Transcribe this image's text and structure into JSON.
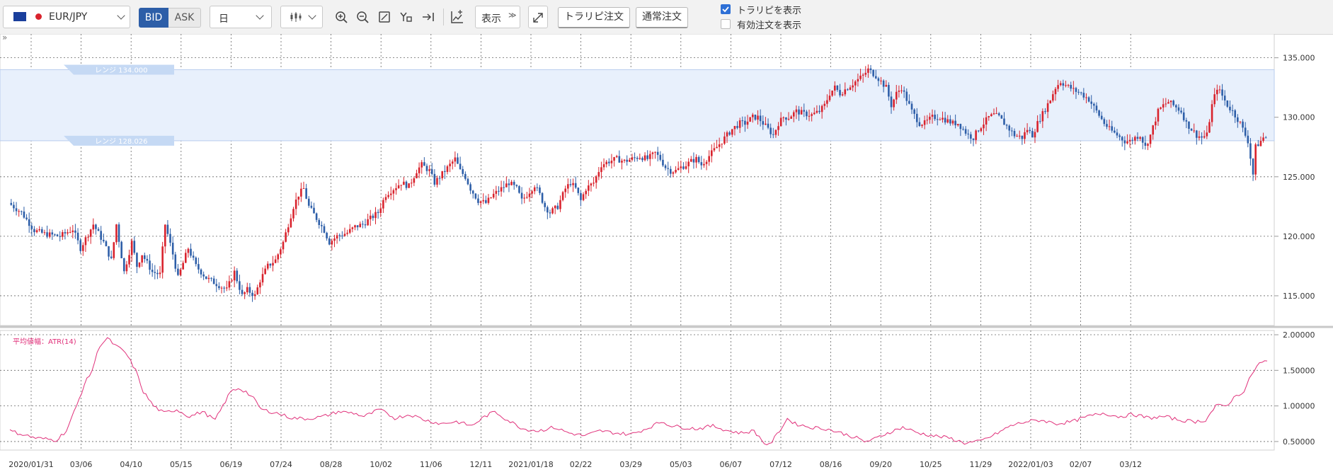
{
  "toolbar": {
    "symbol": "EUR/JPY",
    "bid_label": "BID",
    "ask_label": "ASK",
    "timeframe": "日",
    "display_label": "表示",
    "traripi_order_label": "トラリピ注文",
    "normal_order_label": "通常注文",
    "show_traripi_label": "トラリピを表示",
    "show_traripi_checked": true,
    "show_active_orders_label": "有効注文を表示",
    "show_active_orders_checked": false
  },
  "colors": {
    "up_candle": "#d9232d",
    "down_candle": "#2d5ea8",
    "range_band": "#e8f0fc",
    "range_tag": "#c5d9f4",
    "atr_line": "#e0307a",
    "bid_active": "#2d5ea8"
  },
  "chart_data": [
    {
      "type": "candlestick",
      "title": "",
      "x_tick_labels": [
        "2020/01/31",
        "03/06",
        "04/10",
        "05/15",
        "06/19",
        "07/24",
        "08/28",
        "10/02",
        "11/06",
        "12/11",
        "2021/01/18",
        "02/22",
        "03/29",
        "05/03",
        "06/07",
        "07/12",
        "08/16",
        "09/20",
        "10/25",
        "11/29",
        "2022/01/03",
        "02/07",
        "03/12"
      ],
      "y_ticks": [
        "135.000",
        "130.000",
        "125.000",
        "120.000",
        "115.000"
      ],
      "ylim": [
        112.5,
        137.0
      ],
      "range_band": {
        "upper": 134.0,
        "lower": 128.026,
        "upper_label": "レンジ 134.000",
        "lower_label": "レンジ 128.026"
      },
      "close_path": [
        [
          0,
          122.8
        ],
        [
          5,
          122.0
        ],
        [
          10,
          120.5
        ],
        [
          14,
          120.2
        ],
        [
          20,
          120.0
        ],
        [
          25,
          120.6
        ],
        [
          28,
          119.0
        ],
        [
          33,
          121.0
        ],
        [
          37,
          119.5
        ],
        [
          40,
          118.0
        ],
        [
          42,
          121.0
        ],
        [
          45,
          117.0
        ],
        [
          48,
          119.5
        ],
        [
          50,
          117.5
        ],
        [
          52,
          118.5
        ],
        [
          56,
          117.0
        ],
        [
          59,
          116.8
        ],
        [
          61,
          121.0
        ],
        [
          64,
          118.5
        ],
        [
          66,
          116.5
        ],
        [
          70,
          119.0
        ],
        [
          73,
          117.5
        ],
        [
          77,
          116.5
        ],
        [
          81,
          116.0
        ],
        [
          85,
          115.5
        ],
        [
          88,
          117.0
        ],
        [
          91,
          115.0
        ],
        [
          93,
          115.5
        ],
        [
          96,
          115.0
        ],
        [
          98,
          116.3
        ],
        [
          101,
          117.5
        ],
        [
          104,
          118.0
        ],
        [
          107,
          119.5
        ],
        [
          109,
          121.0
        ],
        [
          111,
          122.5
        ],
        [
          113,
          123.5
        ],
        [
          115,
          124.0
        ],
        [
          117,
          122.5
        ],
        [
          120,
          121.5
        ],
        [
          123,
          120.5
        ],
        [
          125,
          119.5
        ],
        [
          128,
          120.0
        ],
        [
          132,
          120.3
        ],
        [
          135,
          120.8
        ],
        [
          138,
          121.0
        ],
        [
          141,
          121.5
        ],
        [
          144,
          122.0
        ],
        [
          147,
          123.5
        ],
        [
          150,
          124.0
        ],
        [
          153,
          124.5
        ],
        [
          156,
          124.2
        ],
        [
          159,
          125.5
        ],
        [
          161,
          126.0
        ],
        [
          164,
          125.5
        ],
        [
          166,
          124.5
        ],
        [
          168,
          125.0
        ],
        [
          170,
          125.5
        ],
        [
          172,
          126.0
        ],
        [
          174,
          126.5
        ],
        [
          176,
          125.5
        ],
        [
          178,
          125.0
        ],
        [
          180,
          124.0
        ],
        [
          183,
          123.0
        ],
        [
          186,
          122.8
        ],
        [
          189,
          123.5
        ],
        [
          192,
          124.0
        ],
        [
          195,
          124.5
        ],
        [
          198,
          124.0
        ],
        [
          200,
          123.0
        ],
        [
          202,
          123.5
        ],
        [
          205,
          124.3
        ],
        [
          207,
          123.5
        ],
        [
          209,
          122.5
        ],
        [
          211,
          122.0
        ],
        [
          214,
          122.5
        ],
        [
          217,
          124.0
        ],
        [
          219,
          124.5
        ],
        [
          221,
          124.0
        ],
        [
          223,
          123.0
        ],
        [
          225,
          124.0
        ],
        [
          228,
          124.5
        ],
        [
          231,
          126.0
        ],
        [
          234,
          126.3
        ],
        [
          237,
          126.5
        ],
        [
          240,
          126.3
        ],
        [
          243,
          126.5
        ],
        [
          246,
          126.7
        ],
        [
          249,
          126.5
        ],
        [
          252,
          127.0
        ],
        [
          254,
          126.5
        ],
        [
          256,
          125.8
        ],
        [
          258,
          125.5
        ],
        [
          260,
          125.5
        ],
        [
          262,
          125.8
        ],
        [
          264,
          126.0
        ],
        [
          266,
          126.3
        ],
        [
          268,
          126.5
        ],
        [
          270,
          126.0
        ],
        [
          272,
          126.5
        ],
        [
          274,
          127.0
        ],
        [
          276,
          127.5
        ],
        [
          278,
          128.0
        ],
        [
          280,
          128.5
        ],
        [
          282,
          129.0
        ],
        [
          285,
          129.5
        ],
        [
          287,
          129.5
        ],
        [
          290,
          130.0
        ],
        [
          292,
          130.0
        ],
        [
          294,
          129.5
        ],
        [
          296,
          129.0
        ],
        [
          298,
          128.5
        ],
        [
          300,
          129.5
        ],
        [
          302,
          130.0
        ],
        [
          304,
          130.0
        ],
        [
          307,
          130.5
        ],
        [
          310,
          130.3
        ],
        [
          313,
          130.2
        ],
        [
          316,
          130.5
        ],
        [
          318,
          131.0
        ],
        [
          320,
          132.0
        ],
        [
          322,
          132.5
        ],
        [
          324,
          132.0
        ],
        [
          327,
          132.5
        ],
        [
          330,
          133.0
        ],
        [
          333,
          133.5
        ],
        [
          335,
          134.0
        ],
        [
          338,
          133.5
        ],
        [
          340,
          133.0
        ],
        [
          342,
          132.5
        ],
        [
          344,
          131.0
        ],
        [
          346,
          132.0
        ],
        [
          348,
          132.5
        ],
        [
          350,
          131.5
        ],
        [
          352,
          130.5
        ],
        [
          355,
          129.5
        ],
        [
          357,
          129.5
        ],
        [
          360,
          130.0
        ],
        [
          363,
          130.0
        ],
        [
          365,
          129.8
        ],
        [
          368,
          129.5
        ],
        [
          370,
          129.5
        ],
        [
          372,
          129.0
        ],
        [
          374,
          128.5
        ],
        [
          376,
          128.3
        ],
        [
          378,
          129.0
        ],
        [
          380,
          129.5
        ],
        [
          382,
          130.0
        ],
        [
          384,
          130.2
        ],
        [
          386,
          130.0
        ],
        [
          388,
          129.5
        ],
        [
          390,
          129.0
        ],
        [
          392,
          128.5
        ],
        [
          395,
          128.3
        ],
        [
          397,
          129.0
        ],
        [
          399,
          128.5
        ],
        [
          401,
          129.5
        ],
        [
          403,
          130.3
        ],
        [
          406,
          131.5
        ],
        [
          408,
          132.5
        ],
        [
          410,
          133.0
        ],
        [
          412,
          132.7
        ],
        [
          415,
          132.3
        ],
        [
          418,
          132.0
        ],
        [
          421,
          131.5
        ],
        [
          424,
          130.5
        ],
        [
          427,
          129.5
        ],
        [
          429,
          129.0
        ],
        [
          432,
          128.5
        ],
        [
          435,
          128.0
        ],
        [
          437,
          128.0
        ],
        [
          439,
          128.3
        ],
        [
          441,
          128.5
        ],
        [
          443,
          127.5
        ],
        [
          445,
          128.5
        ],
        [
          448,
          130.5
        ],
        [
          450,
          131.0
        ],
        [
          452,
          131.3
        ],
        [
          454,
          131.0
        ],
        [
          457,
          130.5
        ],
        [
          459,
          129.5
        ],
        [
          461,
          129.0
        ],
        [
          463,
          128.5
        ],
        [
          465,
          128.3
        ],
        [
          467,
          128.5
        ],
        [
          469,
          131.0
        ],
        [
          471,
          132.5
        ],
        [
          473,
          131.8
        ],
        [
          475,
          131.0
        ],
        [
          477,
          130.5
        ],
        [
          480,
          129.5
        ],
        [
          483,
          128.0
        ],
        [
          485,
          125.2
        ],
        [
          486,
          127.5
        ],
        [
          488,
          128.0
        ],
        [
          489,
          128.3
        ]
      ],
      "x_index_max": 490
    },
    {
      "type": "line",
      "title": "平均値幅：ATR(14)",
      "y_ticks": [
        "2.00000",
        "1.50000",
        "1.00000",
        "0.50000"
      ],
      "ylim": [
        0.38,
        2.06
      ],
      "values_path": [
        [
          0,
          0.65
        ],
        [
          10,
          0.55
        ],
        [
          18,
          0.52
        ],
        [
          22,
          0.65
        ],
        [
          26,
          1.0
        ],
        [
          29,
          1.3
        ],
        [
          32,
          1.5
        ],
        [
          35,
          1.85
        ],
        [
          38,
          1.95
        ],
        [
          41,
          1.85
        ],
        [
          45,
          1.75
        ],
        [
          49,
          1.5
        ],
        [
          52,
          1.2
        ],
        [
          56,
          1.0
        ],
        [
          60,
          0.9
        ],
        [
          65,
          0.95
        ],
        [
          70,
          0.85
        ],
        [
          75,
          0.92
        ],
        [
          80,
          0.8
        ],
        [
          83,
          1.0
        ],
        [
          86,
          1.2
        ],
        [
          89,
          1.25
        ],
        [
          92,
          1.2
        ],
        [
          95,
          1.1
        ],
        [
          98,
          0.95
        ],
        [
          104,
          0.9
        ],
        [
          110,
          0.83
        ],
        [
          116,
          0.82
        ],
        [
          122,
          0.85
        ],
        [
          128,
          0.92
        ],
        [
          134,
          0.9
        ],
        [
          138,
          0.85
        ],
        [
          144,
          0.95
        ],
        [
          150,
          0.83
        ],
        [
          156,
          0.88
        ],
        [
          162,
          0.8
        ],
        [
          168,
          0.75
        ],
        [
          174,
          0.78
        ],
        [
          180,
          0.72
        ],
        [
          185,
          0.85
        ],
        [
          189,
          0.92
        ],
        [
          194,
          0.8
        ],
        [
          200,
          0.68
        ],
        [
          206,
          0.65
        ],
        [
          212,
          0.7
        ],
        [
          218,
          0.62
        ],
        [
          224,
          0.58
        ],
        [
          230,
          0.65
        ],
        [
          236,
          0.62
        ],
        [
          242,
          0.6
        ],
        [
          248,
          0.68
        ],
        [
          254,
          0.78
        ],
        [
          258,
          0.72
        ],
        [
          262,
          0.7
        ],
        [
          268,
          0.68
        ],
        [
          274,
          0.72
        ],
        [
          280,
          0.65
        ],
        [
          285,
          0.62
        ],
        [
          290,
          0.65
        ],
        [
          294,
          0.48
        ],
        [
          296,
          0.45
        ],
        [
          299,
          0.6
        ],
        [
          303,
          0.82
        ],
        [
          306,
          0.75
        ],
        [
          312,
          0.7
        ],
        [
          318,
          0.68
        ],
        [
          324,
          0.62
        ],
        [
          330,
          0.55
        ],
        [
          333,
          0.5
        ],
        [
          336,
          0.52
        ],
        [
          342,
          0.62
        ],
        [
          348,
          0.7
        ],
        [
          354,
          0.62
        ],
        [
          360,
          0.58
        ],
        [
          366,
          0.55
        ],
        [
          372,
          0.48
        ],
        [
          378,
          0.5
        ],
        [
          384,
          0.6
        ],
        [
          390,
          0.72
        ],
        [
          396,
          0.78
        ],
        [
          402,
          0.8
        ],
        [
          408,
          0.75
        ],
        [
          414,
          0.78
        ],
        [
          420,
          0.85
        ],
        [
          426,
          0.9
        ],
        [
          432,
          0.85
        ],
        [
          438,
          0.88
        ],
        [
          444,
          0.83
        ],
        [
          450,
          0.85
        ],
        [
          456,
          0.8
        ],
        [
          462,
          0.78
        ],
        [
          466,
          0.8
        ],
        [
          470,
          1.0
        ],
        [
          474,
          1.0
        ],
        [
          478,
          1.15
        ],
        [
          481,
          1.2
        ],
        [
          484,
          1.45
        ],
        [
          487,
          1.6
        ],
        [
          489,
          1.62
        ]
      ],
      "x_index_max": 490
    }
  ]
}
